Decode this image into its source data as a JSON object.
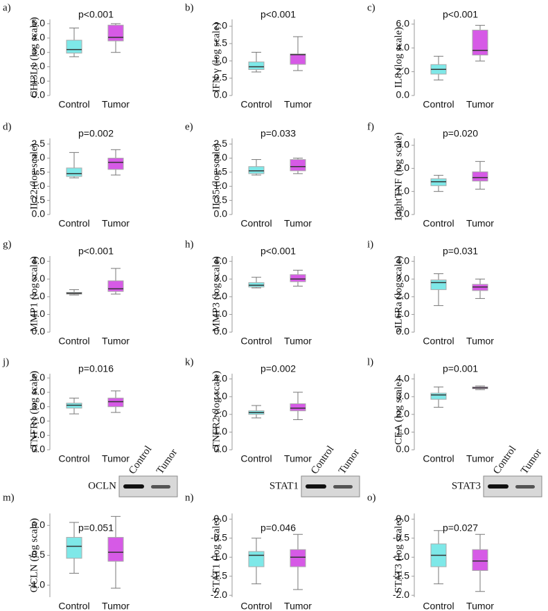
{
  "chart_data": [
    {
      "type": "box",
      "panel": "a)",
      "annotation": "p<0.001",
      "y_label": "CHI3L1 (log scale)",
      "categories": [
        "Control",
        "Tumor"
      ],
      "colors": [
        "#7ee8e8",
        "#d65ae6"
      ],
      "min": [
        2.7,
        3.0
      ],
      "q1": [
        2.95,
        3.8
      ],
      "median": [
        3.2,
        4.05
      ],
      "q3": [
        3.85,
        4.9
      ],
      "max": [
        4.7,
        5.0
      ],
      "ylim": [
        0,
        5.3
      ],
      "yticks": [
        {
          "value": 0,
          "label": "0.0"
        },
        {
          "value": 1,
          "label": "1.0"
        },
        {
          "value": 2,
          "label": "2.0"
        },
        {
          "value": 3,
          "label": "3.0"
        },
        {
          "value": 4,
          "label": "4.0"
        },
        {
          "value": 5,
          "label": "5.0"
        }
      ]
    },
    {
      "type": "box",
      "panel": "b)",
      "annotation": "p<0.001",
      "y_label": "IFN γ (log scale)",
      "categories": [
        "Control",
        "Tumor"
      ],
      "colors": [
        "#7ee8e8",
        "#d65ae6"
      ],
      "min": [
        0.68,
        0.72
      ],
      "q1": [
        0.75,
        0.9
      ],
      "median": [
        0.83,
        1.18
      ],
      "q3": [
        0.97,
        1.2
      ],
      "max": [
        1.25,
        1.7
      ],
      "ylim": [
        0,
        2.2
      ],
      "yticks": [
        {
          "value": 0,
          "label": "0.0"
        },
        0.5,
        {
          "value": 1,
          "label": "1.0"
        },
        1.5,
        {
          "value": 2,
          "label": "2.0"
        }
      ]
    },
    {
      "type": "box",
      "panel": "c)",
      "annotation": "p<0.001",
      "y_label": "IL8 (log scale)",
      "categories": [
        "Control",
        "Tumor"
      ],
      "colors": [
        "#7ee8e8",
        "#d65ae6"
      ],
      "min": [
        1.3,
        2.9
      ],
      "q1": [
        1.8,
        3.4
      ],
      "median": [
        2.2,
        3.8
      ],
      "q3": [
        2.6,
        5.5
      ],
      "max": [
        3.3,
        5.9
      ],
      "ylim": [
        0,
        6.4
      ],
      "yticks": [
        {
          "value": 0,
          "label": "0.0"
        },
        {
          "value": 2,
          "label": "2.0"
        },
        {
          "value": 4,
          "label": "4.0"
        },
        {
          "value": 6,
          "label": "6.0"
        }
      ]
    },
    {
      "type": "box",
      "panel": "d)",
      "annotation": "p=0.002",
      "y_label": "IL22 (log scale)",
      "categories": [
        "Control",
        "Tumor"
      ],
      "colors": [
        "#7ee8e8",
        "#d65ae6"
      ],
      "min": [
        1.3,
        1.4
      ],
      "q1": [
        1.35,
        1.6
      ],
      "median": [
        1.45,
        1.85
      ],
      "q3": [
        1.65,
        2.0
      ],
      "max": [
        2.2,
        2.3
      ],
      "ylim": [
        0,
        2.7
      ],
      "yticks": [
        {
          "value": 0,
          "label": "0.0"
        },
        0.5,
        {
          "value": 1,
          "label": "1.0"
        },
        1.5,
        {
          "value": 2,
          "label": "2.0"
        },
        2.5
      ]
    },
    {
      "type": "box",
      "panel": "e)",
      "annotation": "p=0.033",
      "y_label": "IL35 (log scale)",
      "categories": [
        "Control",
        "Tumor"
      ],
      "colors": [
        "#7ee8e8",
        "#d65ae6"
      ],
      "min": [
        1.4,
        1.45
      ],
      "q1": [
        1.45,
        1.55
      ],
      "median": [
        1.55,
        1.7
      ],
      "q3": [
        1.7,
        1.95
      ],
      "max": [
        1.95,
        2.0
      ],
      "ylim": [
        0,
        2.7
      ],
      "yticks": [
        {
          "value": 0,
          "label": "0.0"
        },
        0.5,
        {
          "value": 1,
          "label": "1.0"
        },
        1.5,
        {
          "value": 2,
          "label": "2.0"
        },
        2.5
      ]
    },
    {
      "type": "box",
      "panel": "f)",
      "annotation": "p=0.020",
      "y_label": "LightTNF (log scale)",
      "categories": [
        "Control",
        "Tumor"
      ],
      "colors": [
        "#7ee8e8",
        "#d65ae6"
      ],
      "min": [
        1.0,
        1.1
      ],
      "q1": [
        1.25,
        1.45
      ],
      "median": [
        1.42,
        1.6
      ],
      "q3": [
        1.55,
        1.85
      ],
      "max": [
        1.7,
        2.3
      ],
      "ylim": [
        0,
        3.3
      ],
      "yticks": [
        {
          "value": 0,
          "label": "0.0"
        },
        {
          "value": 1,
          "label": "1.0"
        },
        {
          "value": 2,
          "label": "2.0"
        },
        {
          "value": 3,
          "label": "3.0"
        }
      ]
    },
    {
      "type": "box",
      "panel": "g)",
      "annotation": "p<0.001",
      "y_label": "MMP1 (log scale)",
      "categories": [
        "Control",
        "Tumor"
      ],
      "colors": [
        "#7ee8e8",
        "#d65ae6"
      ],
      "min": [
        2.1,
        2.15
      ],
      "q1": [
        2.15,
        2.3
      ],
      "median": [
        2.2,
        2.45
      ],
      "q3": [
        2.25,
        2.9
      ],
      "max": [
        2.4,
        3.6
      ],
      "ylim": [
        0,
        4.3
      ],
      "yticks": [
        {
          "value": 0,
          "label": "0.0"
        },
        {
          "value": 1,
          "label": "1.0"
        },
        {
          "value": 2,
          "label": "2.0"
        },
        {
          "value": 3,
          "label": "3.0"
        },
        {
          "value": 4,
          "label": "4.0"
        }
      ]
    },
    {
      "type": "box",
      "panel": "h)",
      "annotation": "p<0.001",
      "y_label": "MMP3 (log scale)",
      "categories": [
        "Control",
        "Tumor"
      ],
      "colors": [
        "#7ee8e8",
        "#d65ae6"
      ],
      "min": [
        2.5,
        2.6
      ],
      "q1": [
        2.55,
        2.85
      ],
      "median": [
        2.65,
        3.0
      ],
      "q3": [
        2.8,
        3.25
      ],
      "max": [
        3.1,
        3.5
      ],
      "ylim": [
        0,
        4.3
      ],
      "yticks": [
        {
          "value": 0,
          "label": "0.0"
        },
        {
          "value": 1,
          "label": "1.0"
        },
        {
          "value": 2,
          "label": "2.0"
        },
        {
          "value": 3,
          "label": "3.0"
        },
        {
          "value": 4,
          "label": "4.0"
        }
      ]
    },
    {
      "type": "box",
      "panel": "i)",
      "annotation": "p=0.031",
      "y_label": "sIL6Ra (log scale)",
      "categories": [
        "Control",
        "Tumor"
      ],
      "colors": [
        "#7ee8e8",
        "#d65ae6"
      ],
      "min": [
        1.5,
        1.9
      ],
      "q1": [
        2.4,
        2.35
      ],
      "median": [
        2.8,
        2.55
      ],
      "q3": [
        2.95,
        2.7
      ],
      "max": [
        3.3,
        3.0
      ],
      "ylim": [
        0,
        4.3
      ],
      "yticks": [
        {
          "value": 0,
          "label": "0.0"
        },
        {
          "value": 1,
          "label": "1.0"
        },
        {
          "value": 2,
          "label": "2.0"
        },
        {
          "value": 3,
          "label": "3.0"
        },
        {
          "value": 4,
          "label": "4.0"
        }
      ]
    },
    {
      "type": "box",
      "panel": "j)",
      "annotation": "p=0.016",
      "y_label": "sTNFR1 (log scale)",
      "categories": [
        "Control",
        "Tumor"
      ],
      "colors": [
        "#7ee8e8",
        "#d65ae6"
      ],
      "min": [
        2.5,
        2.6
      ],
      "q1": [
        2.9,
        3.0
      ],
      "median": [
        3.1,
        3.35
      ],
      "q3": [
        3.25,
        3.6
      ],
      "max": [
        3.6,
        4.1
      ],
      "ylim": [
        0,
        5.3
      ],
      "yticks": [
        {
          "value": 0,
          "label": "0.0"
        },
        {
          "value": 1,
          "label": "1.0"
        },
        {
          "value": 2,
          "label": "2.0"
        },
        {
          "value": 3,
          "label": "3.0"
        },
        {
          "value": 4,
          "label": "4.0"
        },
        {
          "value": 5,
          "label": "5.0"
        }
      ]
    },
    {
      "type": "box",
      "panel": "k)",
      "annotation": "p=0.002",
      "y_label": "sTNFR2 (log scale)",
      "categories": [
        "Control",
        "Tumor"
      ],
      "colors": [
        "#7ee8e8",
        "#d65ae6"
      ],
      "min": [
        1.8,
        1.7
      ],
      "q1": [
        2.0,
        2.2
      ],
      "median": [
        2.1,
        2.35
      ],
      "q3": [
        2.2,
        2.6
      ],
      "max": [
        2.5,
        3.25
      ],
      "ylim": [
        0,
        4.3
      ],
      "yticks": [
        {
          "value": 0,
          "label": "0.0"
        },
        {
          "value": 1,
          "label": "1.0"
        },
        {
          "value": 2,
          "label": "2.0"
        },
        {
          "value": 3,
          "label": "3.0"
        },
        {
          "value": 4,
          "label": "4.0"
        }
      ]
    },
    {
      "type": "box",
      "panel": "l)",
      "annotation": "p=0.001",
      "y_label": "CEA (log scale)",
      "categories": [
        "Control",
        "Tumor"
      ],
      "colors": [
        "#7ee8e8",
        "#d65ae6"
      ],
      "min": [
        2.4,
        3.4
      ],
      "q1": [
        2.85,
        3.45
      ],
      "median": [
        3.1,
        3.5
      ],
      "q3": [
        3.2,
        3.55
      ],
      "max": [
        3.55,
        3.6
      ],
      "ylim": [
        0,
        4.3
      ],
      "yticks": [
        {
          "value": 0,
          "label": "0.0"
        },
        {
          "value": 1,
          "label": "1.0"
        },
        {
          "value": 2,
          "label": "2.0"
        },
        {
          "value": 3,
          "label": "3.0"
        },
        {
          "value": 4,
          "label": "4.0"
        }
      ]
    },
    {
      "type": "box",
      "panel": "m)",
      "annotation": "p=0.051",
      "y_label": "OCLN (log scale)",
      "blot": {
        "label": "OCLN",
        "lanes": [
          "Control",
          "Tumor"
        ]
      },
      "categories": [
        "Control",
        "Tumor"
      ],
      "colors": [
        "#7ee8e8",
        "#d65ae6"
      ],
      "min": [
        -0.8,
        -1.05
      ],
      "q1": [
        -0.55,
        -0.6
      ],
      "median": [
        -0.35,
        -0.45
      ],
      "q3": [
        -0.2,
        -0.2
      ],
      "max": [
        0.05,
        0.15
      ],
      "ylim": [
        -1.2,
        0.2
      ],
      "yticks": [
        {
          "value": 0,
          "label": "0.0"
        },
        -0.5,
        {
          "value": -1,
          "label": "-1.0"
        }
      ]
    },
    {
      "type": "box",
      "panel": "n)",
      "annotation": "p=0.046",
      "y_label": "STAT1 (log scale)",
      "blot": {
        "label": "STAT1",
        "lanes": [
          "Control",
          "Tumor"
        ]
      },
      "categories": [
        "Control",
        "Tumor"
      ],
      "colors": [
        "#7ee8e8",
        "#d65ae6"
      ],
      "min": [
        -1.7,
        -1.85
      ],
      "q1": [
        -1.25,
        -1.25
      ],
      "median": [
        -0.95,
        -1.0
      ],
      "q3": [
        -0.85,
        -0.8
      ],
      "max": [
        -0.5,
        -0.4
      ],
      "ylim": [
        -2.05,
        0.15
      ],
      "yticks": [
        {
          "value": 0,
          "label": "0.0"
        },
        -0.5,
        {
          "value": -1,
          "label": "-1.0"
        },
        -1.5,
        {
          "value": -2,
          "label": "-2.0"
        }
      ]
    },
    {
      "type": "box",
      "panel": "o)",
      "annotation": "p=0.027",
      "y_label": "STAT3 (log scale)",
      "blot": {
        "label": "STAT3",
        "lanes": [
          "Control",
          "Tumor"
        ]
      },
      "categories": [
        "Control",
        "Tumor"
      ],
      "colors": [
        "#7ee8e8",
        "#d65ae6"
      ],
      "min": [
        -1.7,
        -1.9
      ],
      "q1": [
        -1.25,
        -1.35
      ],
      "median": [
        -0.95,
        -1.1
      ],
      "q3": [
        -0.65,
        -0.8
      ],
      "max": [
        -0.3,
        -0.4
      ],
      "ylim": [
        -2.05,
        0.15
      ],
      "yticks": [
        {
          "value": 0,
          "label": "0.0"
        },
        -0.5,
        {
          "value": -1,
          "label": "-1.0"
        },
        -1.5,
        {
          "value": -2,
          "label": "-2.0"
        }
      ]
    }
  ]
}
